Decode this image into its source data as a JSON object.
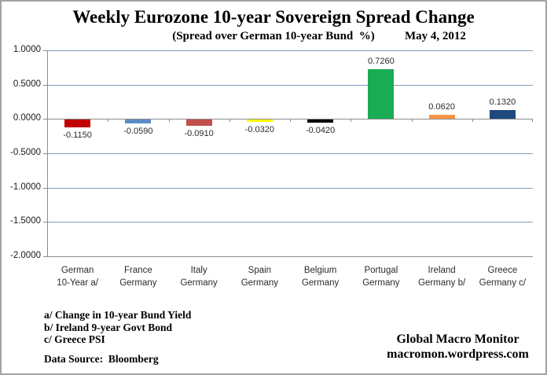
{
  "header": {
    "title": "Weekly Eurozone 10-year Sovereign Spread Change",
    "subtitle": "(Spread over German 10-year Bund  %)",
    "date": "May 4, 2012"
  },
  "chart_data": {
    "type": "bar",
    "title": "Weekly Eurozone 10-year Sovereign Spread Change",
    "subtitle": "(Spread over German 10-year Bund %)",
    "date": "May 4, 2012",
    "categories": [
      [
        "German",
        "10-Year a/"
      ],
      [
        "France",
        "Germany"
      ],
      [
        "Italy",
        "Germany"
      ],
      [
        "Spain",
        "Germany"
      ],
      [
        "Belgium",
        "Germany"
      ],
      [
        "Portugal",
        "Germany"
      ],
      [
        "Ireland",
        "Germany b/"
      ],
      [
        "Greece",
        "Germany c/"
      ]
    ],
    "values": [
      -0.115,
      -0.059,
      -0.091,
      -0.032,
      -0.042,
      0.726,
      0.062,
      0.132
    ],
    "value_labels": [
      "-0.1150",
      "-0.0590",
      "-0.0910",
      "-0.0320",
      "-0.0420",
      "0.7260",
      "0.0620",
      "0.1320"
    ],
    "bar_colors": [
      "#C00000",
      "#5B8CC8",
      "#C0504D",
      "#FFFF00",
      "#000000",
      "#1AAC52",
      "#F79646",
      "#1F497D"
    ],
    "ylim": [
      -2.0,
      1.0
    ],
    "yticks": [
      1.0,
      0.5,
      0.0,
      -0.5,
      -1.0,
      -1.5,
      -2.0
    ],
    "ytick_labels": [
      "1.0000",
      "0.5000",
      "0.0000",
      "-0.5000",
      "-1.0000",
      "-1.5000",
      "-2.0000"
    ],
    "grid": true,
    "gridline_color": "#7f9db9",
    "axis_color": "#8c8c8c",
    "legend": "none",
    "xlabel": "",
    "ylabel": ""
  },
  "footnotes": {
    "lines": [
      "a/ Change in 10-year Bund Yield",
      "b/ Ireland 9-year Govt Bond",
      "c/ Greece PSI"
    ],
    "source": "Data Source:  Bloomberg"
  },
  "branding": {
    "line1": "Global Macro Monitor",
    "line2": "macromon.wordpress.com"
  }
}
